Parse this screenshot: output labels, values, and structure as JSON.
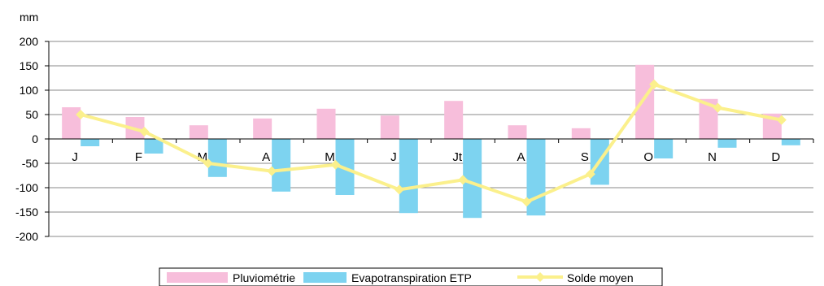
{
  "chart_data": {
    "type": "bar",
    "ylabel": "mm",
    "ylim": [
      -200,
      200
    ],
    "yticks": [
      200,
      150,
      100,
      50,
      0,
      -50,
      -100,
      -150,
      -200
    ],
    "grid": "horizontal",
    "legend_position": "bottom",
    "categories": [
      "J",
      "F",
      "M",
      "A",
      "M",
      "J",
      "Jt",
      "A",
      "S",
      "O",
      "N",
      "D"
    ],
    "series": [
      {
        "name": "Pluviométrie",
        "kind": "bar",
        "color": "#f7bedb",
        "values": [
          65,
          45,
          28,
          42,
          62,
          48,
          78,
          28,
          22,
          152,
          82,
          52
        ]
      },
      {
        "name": "Evapotranspiration ETP",
        "kind": "bar",
        "color": "#7dd3f0",
        "values": [
          -15,
          -30,
          -78,
          -108,
          -115,
          -152,
          -162,
          -157,
          -94,
          -40,
          -18,
          -13
        ]
      },
      {
        "name": "Solde moyen",
        "kind": "line",
        "color": "#fbf08c",
        "values": [
          50,
          15,
          -50,
          -66,
          -53,
          -104,
          -84,
          -129,
          -72,
          112,
          64,
          39
        ]
      }
    ]
  }
}
